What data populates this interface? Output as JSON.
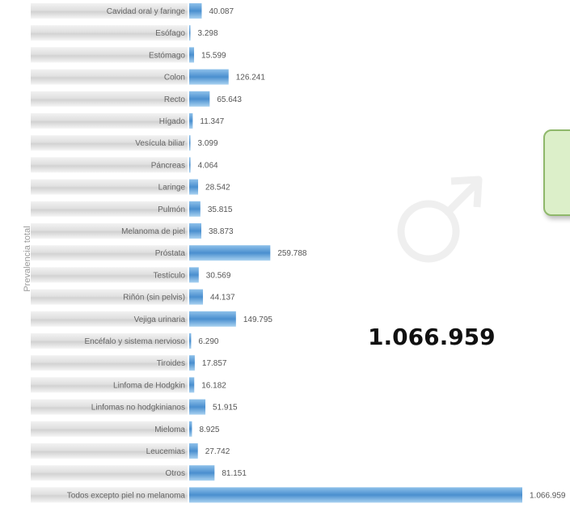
{
  "chart_data": {
    "type": "bar",
    "orientation": "horizontal",
    "ylabel": "Prevalencia total",
    "categories": [
      "Cavidad oral y faringe",
      "Esófago",
      "Estómago",
      "Colon",
      "Recto",
      "Hígado",
      "Vesícula biliar",
      "Páncreas",
      "Laringe",
      "Pulmón",
      "Melanoma de piel",
      "Próstata",
      "Testículo",
      "Riñón (sin pelvis)",
      "Vejiga urinaria",
      "Encéfalo y sistema nervioso",
      "Tiroides",
      "Linfoma de Hodgkin",
      "Linfomas no hodgkinianos",
      "Mieloma",
      "Leucemias",
      "Otros",
      "Todos excepto piel no melanoma"
    ],
    "values": [
      40087,
      3298,
      15599,
      126241,
      65643,
      11347,
      3099,
      4064,
      28542,
      35815,
      38873,
      259788,
      30569,
      44137,
      149795,
      6290,
      17857,
      16182,
      51915,
      8925,
      27742,
      81151,
      1066959
    ],
    "value_labels": [
      "40.087",
      "3.298",
      "15.599",
      "126.241",
      "65.643",
      "11.347",
      "3.099",
      "4.064",
      "28.542",
      "35.815",
      "38.873",
      "259.788",
      "30.569",
      "44.137",
      "149.795",
      "6.290",
      "17.857",
      "16.182",
      "51.915",
      "8.925",
      "27.742",
      "81.151",
      "1.066.959"
    ],
    "xlim": [
      0,
      1066959
    ],
    "grid": false,
    "bar_color": "#4a8fcf"
  },
  "total_label": "1.066.959",
  "male_symbol": "male-sign-icon",
  "callout_color": "#dcefc9"
}
